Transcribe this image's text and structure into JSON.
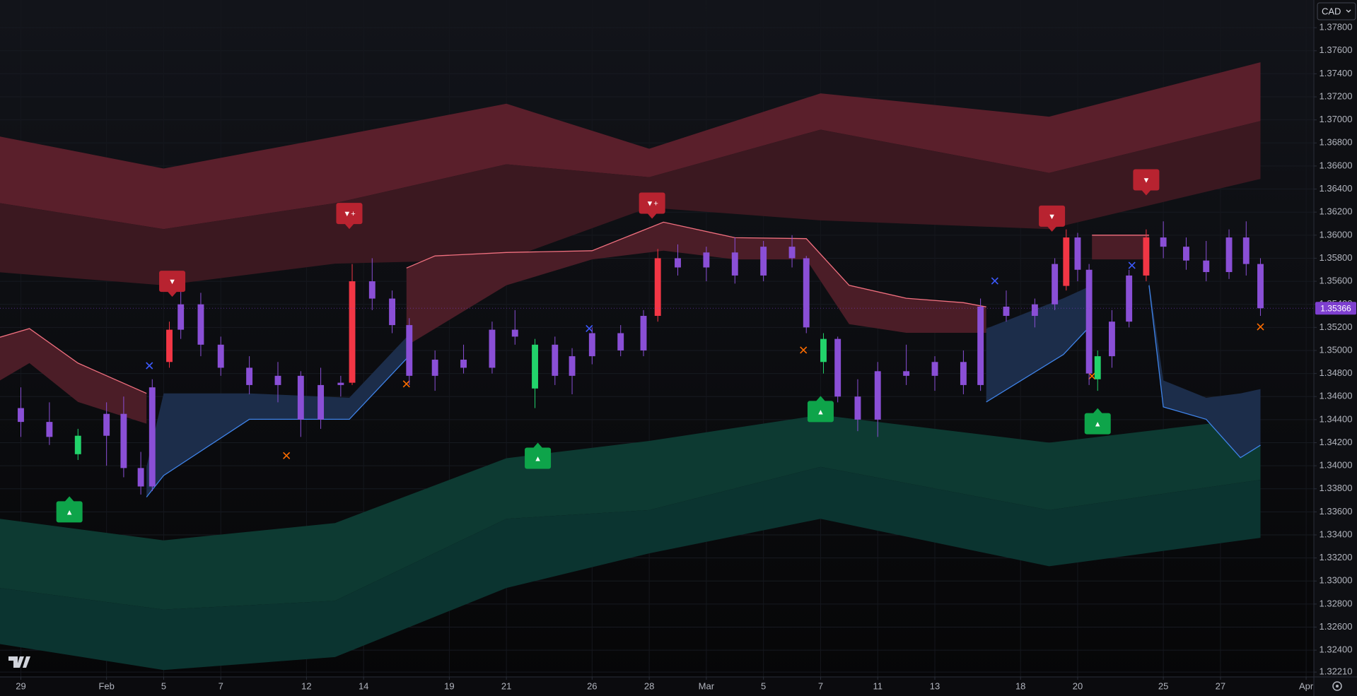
{
  "chart_data": {
    "type": "candlestick",
    "currency": "CAD",
    "x": [
      0,
      1,
      2,
      3,
      3.6,
      4.2,
      4.6,
      5.2,
      5.6,
      6.3,
      7,
      8,
      9,
      9.8,
      10.5,
      11.2,
      11.6,
      12.3,
      13,
      13.6,
      14.5,
      15.5,
      16.5,
      17.3,
      18,
      18.7,
      19.3,
      20,
      21,
      21.8,
      22.3,
      23,
      24,
      25,
      26,
      27,
      27.5,
      28.1,
      28.6,
      29.3,
      30,
      31,
      32,
      33,
      33.6,
      34.5,
      35.5,
      36.2,
      36.6,
      37,
      37.4,
      37.7,
      38.2,
      38.8,
      39.4,
      40,
      40.8,
      41.5,
      42.3,
      42.9,
      43.4
    ],
    "open": [
      1.345,
      1.3438,
      1.341,
      1.3426,
      1.3445,
      1.3398,
      1.3382,
      1.349,
      1.3518,
      1.354,
      1.3505,
      1.3485,
      1.347,
      1.3478,
      1.344,
      1.347,
      1.3472,
      1.356,
      1.3545,
      1.3522,
      1.3478,
      1.3492,
      1.3485,
      1.3518,
      1.3467,
      1.3505,
      1.3478,
      1.3495,
      1.3515,
      1.35,
      1.353,
      1.358,
      1.3572,
      1.3585,
      1.3565,
      1.359,
      1.358,
      1.349,
      1.351,
      1.346,
      1.344,
      1.3482,
      1.3478,
      1.349,
      1.347,
      1.3538,
      1.353,
      1.354,
      1.3556,
      1.3598,
      1.357,
      1.3475,
      1.3495,
      1.3525,
      1.3565,
      1.3598,
      1.359,
      1.3578,
      1.3568,
      1.3598,
      1.3575
    ],
    "high": [
      1.3468,
      1.3455,
      1.3432,
      1.3455,
      1.346,
      1.3412,
      1.3475,
      1.3525,
      1.3555,
      1.355,
      1.3512,
      1.3495,
      1.349,
      1.3482,
      1.3485,
      1.3478,
      1.3575,
      1.358,
      1.3552,
      1.3528,
      1.35,
      1.3505,
      1.3525,
      1.3535,
      1.351,
      1.3512,
      1.3502,
      1.352,
      1.3522,
      1.3535,
      1.3588,
      1.3592,
      1.359,
      1.3598,
      1.3595,
      1.36,
      1.3582,
      1.3515,
      1.3512,
      1.3475,
      1.349,
      1.3505,
      1.3495,
      1.35,
      1.3545,
      1.3552,
      1.3545,
      1.358,
      1.3605,
      1.3602,
      1.3575,
      1.35,
      1.3535,
      1.357,
      1.3605,
      1.3612,
      1.3598,
      1.3595,
      1.3605,
      1.3612,
      1.358
    ],
    "low": [
      1.3425,
      1.3418,
      1.3405,
      1.34,
      1.339,
      1.3375,
      1.3378,
      1.3485,
      1.351,
      1.3495,
      1.3478,
      1.3462,
      1.3455,
      1.3425,
      1.3432,
      1.346,
      1.347,
      1.3535,
      1.3515,
      1.347,
      1.3465,
      1.348,
      1.348,
      1.3505,
      1.345,
      1.347,
      1.3462,
      1.3488,
      1.3495,
      1.3495,
      1.3525,
      1.3565,
      1.356,
      1.3558,
      1.356,
      1.3572,
      1.3515,
      1.348,
      1.3455,
      1.343,
      1.3425,
      1.347,
      1.3465,
      1.3462,
      1.3465,
      1.3525,
      1.352,
      1.3535,
      1.3552,
      1.356,
      1.347,
      1.3465,
      1.3485,
      1.352,
      1.356,
      1.358,
      1.357,
      1.356,
      1.3562,
      1.3565,
      1.353
    ],
    "close": [
      1.3438,
      1.3425,
      1.3426,
      1.3445,
      1.3398,
      1.3382,
      1.3468,
      1.3518,
      1.354,
      1.3505,
      1.3485,
      1.347,
      1.3478,
      1.344,
      1.347,
      1.3472,
      1.356,
      1.3545,
      1.3522,
      1.3478,
      1.3492,
      1.3485,
      1.3518,
      1.3512,
      1.3505,
      1.3478,
      1.3495,
      1.3515,
      1.35,
      1.353,
      1.358,
      1.3572,
      1.3585,
      1.3565,
      1.359,
      1.358,
      1.352,
      1.351,
      1.346,
      1.344,
      1.3482,
      1.3478,
      1.349,
      1.347,
      1.3538,
      1.353,
      1.354,
      1.3575,
      1.3598,
      1.357,
      1.348,
      1.3495,
      1.3525,
      1.3565,
      1.3598,
      1.359,
      1.3578,
      1.3568,
      1.3598,
      1.3575,
      1.35366
    ],
    "colors": [
      "#8a4fd6",
      "#8a4fd6",
      "#22d36b",
      "#8a4fd6",
      "#8a4fd6",
      "#8a4fd6",
      "#8a4fd6",
      "#f23645",
      "#8a4fd6",
      "#8a4fd6",
      "#8a4fd6",
      "#8a4fd6",
      "#8a4fd6",
      "#8a4fd6",
      "#8a4fd6",
      "#8a4fd6",
      "#f23645",
      "#8a4fd6",
      "#8a4fd6",
      "#8a4fd6",
      "#8a4fd6",
      "#8a4fd6",
      "#8a4fd6",
      "#8a4fd6",
      "#22d36b",
      "#8a4fd6",
      "#8a4fd6",
      "#8a4fd6",
      "#8a4fd6",
      "#8a4fd6",
      "#f23645",
      "#8a4fd6",
      "#8a4fd6",
      "#8a4fd6",
      "#8a4fd6",
      "#8a4fd6",
      "#8a4fd6",
      "#22d36b",
      "#8a4fd6",
      "#8a4fd6",
      "#8a4fd6",
      "#8a4fd6",
      "#8a4fd6",
      "#8a4fd6",
      "#8a4fd6",
      "#8a4fd6",
      "#8a4fd6",
      "#8a4fd6",
      "#f23645",
      "#8a4fd6",
      "#8a4fd6",
      "#22d36b",
      "#8a4fd6",
      "#8a4fd6",
      "#f23645",
      "#8a4fd6",
      "#8a4fd6",
      "#8a4fd6",
      "#8a4fd6",
      "#8a4fd6",
      "#8a4fd6"
    ],
    "xlim": [
      -0.73,
      45.27
    ],
    "xticks": [
      {
        "value": 0,
        "label": "29"
      },
      {
        "value": 3,
        "label": "Feb"
      },
      {
        "value": 5,
        "label": "5"
      },
      {
        "value": 7,
        "label": "7"
      },
      {
        "value": 10,
        "label": "12"
      },
      {
        "value": 12,
        "label": "14"
      },
      {
        "value": 15,
        "label": "19"
      },
      {
        "value": 17,
        "label": "21"
      },
      {
        "value": 20,
        "label": "26"
      },
      {
        "value": 22,
        "label": "28"
      },
      {
        "value": 24,
        "label": "Mar"
      },
      {
        "value": 26,
        "label": "5"
      },
      {
        "value": 28,
        "label": "7"
      },
      {
        "value": 30,
        "label": "11"
      },
      {
        "value": 32,
        "label": "13"
      },
      {
        "value": 35,
        "label": "18"
      },
      {
        "value": 37,
        "label": "20"
      },
      {
        "value": 40,
        "label": "25"
      },
      {
        "value": 42,
        "label": "27"
      },
      {
        "value": 45,
        "label": "Apr"
      }
    ],
    "ylim": [
      1.32168,
      1.3804
    ],
    "yticks": [
      {
        "value": 1.378,
        "label": "1.37800"
      },
      {
        "value": 1.376,
        "label": "1.37600"
      },
      {
        "value": 1.374,
        "label": "1.37400"
      },
      {
        "value": 1.372,
        "label": "1.37200"
      },
      {
        "value": 1.37,
        "label": "1.37000"
      },
      {
        "value": 1.368,
        "label": "1.36800"
      },
      {
        "value": 1.366,
        "label": "1.36600"
      },
      {
        "value": 1.364,
        "label": "1.36400"
      },
      {
        "value": 1.362,
        "label": "1.36200"
      },
      {
        "value": 1.36,
        "label": "1.36000"
      },
      {
        "value": 1.358,
        "label": "1.35800"
      },
      {
        "value": 1.356,
        "label": "1.35600"
      },
      {
        "value": 1.354,
        "label": "1.35400"
      },
      {
        "value": 1.352,
        "label": "1.35200"
      },
      {
        "value": 1.35,
        "label": "1.35000"
      },
      {
        "value": 1.348,
        "label": "1.34800"
      },
      {
        "value": 1.346,
        "label": "1.34600"
      },
      {
        "value": 1.344,
        "label": "1.34400"
      },
      {
        "value": 1.342,
        "label": "1.34200"
      },
      {
        "value": 1.34,
        "label": "1.34000"
      },
      {
        "value": 1.338,
        "label": "1.33800"
      },
      {
        "value": 1.336,
        "label": "1.33600"
      },
      {
        "value": 1.334,
        "label": "1.33400"
      },
      {
        "value": 1.332,
        "label": "1.33200"
      },
      {
        "value": 1.33,
        "label": "1.33000"
      },
      {
        "value": 1.328,
        "label": "1.32800"
      },
      {
        "value": 1.326,
        "label": "1.32600"
      },
      {
        "value": 1.324,
        "label": "1.32400"
      },
      {
        "value": 1.3221,
        "label": "1.32210"
      }
    ],
    "grid": true,
    "last_price": {
      "value": 1.35366,
      "label": "1.35366",
      "color": "#7e3fd0"
    },
    "clouds": [
      {
        "x": [
          -0.73,
          5,
          11,
          17,
          22,
          28,
          36,
          43.4
        ],
        "top": [
          1.36855,
          1.36578,
          1.36855,
          1.3714,
          1.3675,
          1.3723,
          1.37028,
          1.375
        ],
        "mid": [
          1.36278,
          1.36053,
          1.36278,
          1.36615,
          1.36503,
          1.36915,
          1.3654,
          1.3699
        ],
        "bottom": [
          1.35678,
          1.35565,
          1.35753,
          1.3579,
          1.3624,
          1.36128,
          1.36053,
          1.36488
        ],
        "colors": [
          "#5a1f2b",
          "#3b1820"
        ]
      },
      {
        "x": [
          -0.73,
          5,
          11,
          17,
          22,
          28,
          36,
          43.4
        ],
        "top": [
          1.3354,
          1.33353,
          1.33503,
          1.34065,
          1.34215,
          1.3444,
          1.342,
          1.34418
        ],
        "mid": [
          1.3294,
          1.32753,
          1.32828,
          1.3354,
          1.33615,
          1.3399,
          1.33615,
          1.33878
        ],
        "bottom": [
          1.32453,
          1.32228,
          1.3234,
          1.3294,
          1.3324,
          1.3354,
          1.33128,
          1.33375
        ],
        "colors": [
          "#0d3a32",
          "#0b3430"
        ]
      }
    ],
    "ribbons": [
      {
        "x": [
          -0.73,
          0.3,
          2,
          4.4,
          9,
          13.5,
          14.5,
          17,
          20,
          22.5,
          25,
          27.5,
          29,
          31,
          33,
          33.8,
          35.5,
          37.5,
          39.5
        ],
        "upper": [
          1.35115,
          1.3519,
          1.3489,
          1.34628,
          null,
          1.35715,
          1.3582,
          1.3585,
          1.35865,
          1.36113,
          1.35978,
          1.3597,
          1.35565,
          1.35453,
          1.35415,
          1.35378,
          null,
          1.36,
          1.36
        ],
        "lower": [
          1.3474,
          1.3489,
          1.34553,
          1.34365,
          null,
          1.3504,
          1.3519,
          1.35565,
          1.3579,
          1.35865,
          1.3579,
          1.3579,
          1.35228,
          1.35153,
          1.35153,
          1.35153,
          null,
          1.3579,
          1.3579
        ],
        "fill": "#4b1d27",
        "line": "#f0707f",
        "edge": "upper"
      },
      {
        "x": [
          4.4,
          5,
          8,
          11.5,
          13.5,
          20,
          33.8,
          36.5,
          37.5,
          38.5,
          39.5,
          40,
          41.5,
          42.7,
          43.4
        ],
        "upper": [
          1.3399,
          1.34628,
          1.34628,
          1.3459,
          1.35115,
          null,
          1.3519,
          1.35453,
          1.35565,
          null,
          1.35603,
          1.3474,
          1.3459,
          1.34628,
          1.34665
        ],
        "lower": [
          1.33728,
          1.33915,
          1.34403,
          1.34403,
          1.34928,
          null,
          1.34553,
          1.34965,
          1.35228,
          null,
          1.35565,
          1.3451,
          1.34403,
          1.3407,
          1.34178
        ],
        "fill": "#1c2d4a",
        "line": "#3f83e8",
        "edge": "lower"
      }
    ],
    "signals": [
      {
        "x": 5.3,
        "y": 1.356,
        "label": "▼",
        "color": "#b82330",
        "side": "sell"
      },
      {
        "x": 11.5,
        "y": 1.36188,
        "label": "▼+",
        "color": "#b82330",
        "side": "sell"
      },
      {
        "x": 22.1,
        "y": 1.36278,
        "label": "▼+",
        "color": "#b82330",
        "side": "sell"
      },
      {
        "x": 36.1,
        "y": 1.36165,
        "label": "▼",
        "color": "#b82330",
        "side": "sell"
      },
      {
        "x": 39.4,
        "y": 1.3648,
        "label": "▼",
        "color": "#b82330",
        "side": "sell"
      },
      {
        "x": 1.7,
        "y": 1.336,
        "label": "▲",
        "color": "#0ea44a",
        "side": "buy"
      },
      {
        "x": 18.1,
        "y": 1.34065,
        "label": "▲",
        "color": "#0ea44a",
        "side": "buy"
      },
      {
        "x": 28.0,
        "y": 1.3447,
        "label": "▲",
        "color": "#0ea44a",
        "side": "buy"
      },
      {
        "x": 37.7,
        "y": 1.34365,
        "label": "▲",
        "color": "#0ea44a",
        "side": "buy"
      }
    ],
    "crosses": [
      {
        "x": 4.5,
        "y": 1.34868,
        "color": "#3d5afe"
      },
      {
        "x": 19.9,
        "y": 1.3519,
        "color": "#3d5afe"
      },
      {
        "x": 34.1,
        "y": 1.35603,
        "color": "#3d5afe"
      },
      {
        "x": 38.9,
        "y": 1.35738,
        "color": "#3d5afe"
      },
      {
        "x": 9.3,
        "y": 1.34088,
        "color": "#ff6d00"
      },
      {
        "x": 13.5,
        "y": 1.3471,
        "color": "#ff6d00"
      },
      {
        "x": 27.4,
        "y": 1.35003,
        "color": "#ff6d00"
      },
      {
        "x": 37.5,
        "y": 1.34778,
        "color": "#ff6d00"
      },
      {
        "x": 43.4,
        "y": 1.35205,
        "color": "#ff6d00"
      }
    ]
  }
}
